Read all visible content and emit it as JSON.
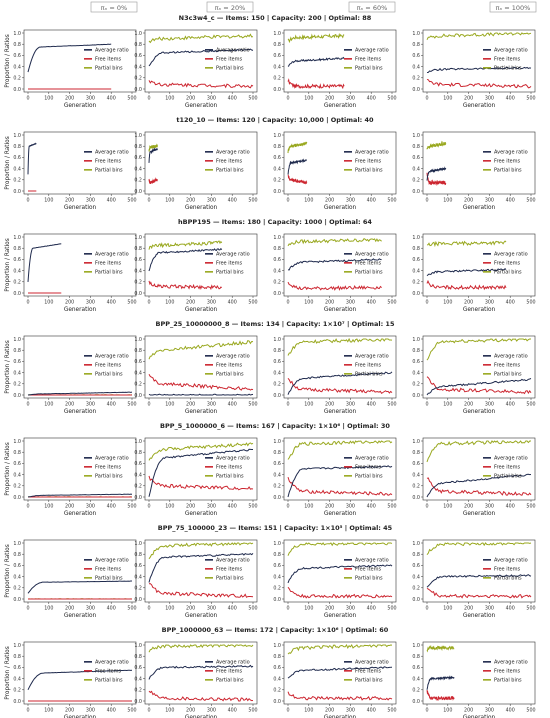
{
  "columns": [
    {
      "label": "πₙ = 0%"
    },
    {
      "label": "πₙ = 20%"
    },
    {
      "label": "πₙ = 60%"
    },
    {
      "label": "πₙ = 100%"
    }
  ],
  "axes": {
    "xlabel": "Generation",
    "ylabel": "Proportion / Ratios",
    "x_ticks": [
      0,
      100,
      200,
      300,
      400,
      500
    ],
    "y_ticks": [
      0.0,
      0.2,
      0.4,
      0.6,
      0.8,
      1.0
    ]
  },
  "legend": [
    {
      "name": "Average ratio",
      "color": "#1f2a4d"
    },
    {
      "name": "Free items",
      "color": "#cc2630"
    },
    {
      "name": "Partial bins",
      "color": "#99a81f"
    }
  ],
  "chart_data": [
    {
      "title": "N3c3w4_c — Items: 150 | Capacity: 200 | Optimal: 88",
      "type": "line",
      "xlim": [
        0,
        500
      ],
      "ylim": [
        0,
        1
      ],
      "panels": [
        {
          "avg": [
            0.3,
            0.75,
            0.8
          ],
          "free": [
            0.0,
            0.0,
            0.0
          ],
          "partial": null,
          "len": 400
        },
        {
          "avg": [
            0.4,
            0.65,
            0.7
          ],
          "free": [
            0.15,
            0.08,
            0.05
          ],
          "partial": [
            0.85,
            0.9,
            0.95
          ],
          "len": 500
        },
        {
          "avg": [
            0.4,
            0.5,
            0.55
          ],
          "free": [
            0.15,
            0.05,
            0.05
          ],
          "partial": [
            0.85,
            0.92,
            0.95
          ],
          "len": 270
        },
        {
          "avg": [
            0.3,
            0.35,
            0.38
          ],
          "free": [
            0.15,
            0.08,
            0.05
          ],
          "partial": [
            0.9,
            0.95,
            1.0
          ],
          "len": 500
        }
      ]
    },
    {
      "title": "t120_10 — Items: 120 | Capacity: 10,000 | Optimal: 40",
      "type": "line",
      "xlim": [
        0,
        500
      ],
      "ylim": [
        0,
        1
      ],
      "panels": [
        {
          "avg": [
            0.3,
            0.8,
            0.85
          ],
          "free": [
            0.0,
            0.0,
            0.0
          ],
          "partial": null,
          "len": 40
        },
        {
          "avg": [
            0.5,
            0.7,
            0.75
          ],
          "free": [
            0.2,
            0.15,
            0.2
          ],
          "partial": [
            0.7,
            0.78,
            0.8
          ],
          "len": 40
        },
        {
          "avg": [
            0.3,
            0.5,
            0.55
          ],
          "free": [
            0.3,
            0.2,
            0.15
          ],
          "partial": [
            0.7,
            0.8,
            0.85
          ],
          "len": 90
        },
        {
          "avg": [
            0.2,
            0.35,
            0.4
          ],
          "free": [
            0.3,
            0.15,
            0.15
          ],
          "partial": [
            0.75,
            0.8,
            0.85
          ],
          "len": 90
        }
      ]
    },
    {
      "title": "hBPP195 — Items: 180 | Capacity: 1000 | Optimal: 64",
      "type": "line",
      "xlim": [
        0,
        500
      ],
      "ylim": [
        0,
        1
      ],
      "panels": [
        {
          "avg": [
            0.2,
            0.8,
            0.88
          ],
          "free": [
            0.0,
            0.0,
            0.0
          ],
          "partial": null,
          "len": 160
        },
        {
          "avg": [
            0.4,
            0.72,
            0.78
          ],
          "free": [
            0.2,
            0.12,
            0.1
          ],
          "partial": [
            0.8,
            0.85,
            0.9
          ],
          "len": 350
        },
        {
          "avg": [
            0.4,
            0.55,
            0.6
          ],
          "free": [
            0.2,
            0.08,
            0.1
          ],
          "partial": [
            0.85,
            0.92,
            0.95
          ],
          "len": 450
        },
        {
          "avg": [
            0.3,
            0.38,
            0.42
          ],
          "free": [
            0.2,
            0.1,
            0.1
          ],
          "partial": [
            0.85,
            0.88,
            0.9
          ],
          "len": 380
        }
      ]
    },
    {
      "title": "BPP_25_10000000_8 — Items: 134 | Capacity: 1×10⁷ | Optimal: 15",
      "type": "line",
      "xlim": [
        0,
        500
      ],
      "ylim": [
        0,
        1
      ],
      "panels": [
        {
          "avg": [
            0.0,
            0.02,
            0.05
          ],
          "free": [
            0.0,
            0.0,
            0.0
          ],
          "partial": [
            0.0,
            0.0,
            0.0
          ],
          "len": 500
        },
        {
          "avg": [
            0.0,
            0.0,
            0.0
          ],
          "free": [
            0.35,
            0.2,
            0.1
          ],
          "partial": [
            0.65,
            0.8,
            0.95
          ],
          "len": 500
        },
        {
          "avg": [
            0.0,
            0.3,
            0.4
          ],
          "free": [
            0.3,
            0.1,
            0.05
          ],
          "partial": [
            0.7,
            0.95,
            1.0
          ],
          "len": 500
        },
        {
          "avg": [
            0.0,
            0.15,
            0.28
          ],
          "free": [
            0.35,
            0.1,
            0.05
          ],
          "partial": [
            0.6,
            0.95,
            1.0
          ],
          "len": 500
        }
      ]
    },
    {
      "title": "BPP_5_1000000_6 — Items: 167 | Capacity: 1×10⁶ | Optimal: 30",
      "type": "line",
      "xlim": [
        0,
        500
      ],
      "ylim": [
        0,
        1
      ],
      "panels": [
        {
          "avg": [
            0.0,
            0.03,
            0.05
          ],
          "free": [
            0.0,
            0.0,
            0.0
          ],
          "partial": [
            0.0,
            0.0,
            0.0
          ],
          "len": 500
        },
        {
          "avg": [
            0.0,
            0.7,
            0.85
          ],
          "free": [
            0.35,
            0.2,
            0.15
          ],
          "partial": [
            0.65,
            0.85,
            0.95
          ],
          "len": 500
        },
        {
          "avg": [
            0.0,
            0.5,
            0.55
          ],
          "free": [
            0.35,
            0.1,
            0.05
          ],
          "partial": [
            0.65,
            0.95,
            1.0
          ],
          "len": 500
        },
        {
          "avg": [
            0.0,
            0.25,
            0.4
          ],
          "free": [
            0.35,
            0.1,
            0.05
          ],
          "partial": [
            0.65,
            0.95,
            1.0
          ],
          "len": 500
        }
      ]
    },
    {
      "title": "BPP_75_100000_23 — Items: 151 | Capacity: 1×10⁵ | Optimal: 45",
      "type": "line",
      "xlim": [
        0,
        500
      ],
      "ylim": [
        0,
        1
      ],
      "panels": [
        {
          "avg": [
            0.1,
            0.3,
            0.32
          ],
          "free": [
            0.0,
            0.0,
            0.0
          ],
          "partial": [
            0.0,
            0.0,
            0.0
          ],
          "len": 500
        },
        {
          "avg": [
            0.3,
            0.75,
            0.8
          ],
          "free": [
            0.3,
            0.1,
            0.05
          ],
          "partial": [
            0.7,
            0.95,
            1.0
          ],
          "len": 500
        },
        {
          "avg": [
            0.3,
            0.55,
            0.6
          ],
          "free": [
            0.2,
            0.05,
            0.05
          ],
          "partial": [
            0.8,
            0.98,
            1.0
          ],
          "len": 500
        },
        {
          "avg": [
            0.2,
            0.4,
            0.42
          ],
          "free": [
            0.2,
            0.05,
            0.05
          ],
          "partial": [
            0.8,
            0.98,
            1.0
          ],
          "len": 500
        }
      ]
    },
    {
      "title": "BPP_1000000_63 — Items: 172 | Capacity: 1×10⁶ | Optimal: 60",
      "type": "line",
      "xlim": [
        0,
        500
      ],
      "ylim": [
        0,
        1
      ],
      "panels": [
        {
          "avg": [
            0.2,
            0.5,
            0.55
          ],
          "free": [
            0.0,
            0.0,
            0.0
          ],
          "partial": null,
          "len": 500
        },
        {
          "avg": [
            0.4,
            0.6,
            0.62
          ],
          "free": [
            0.2,
            0.05,
            0.02
          ],
          "partial": [
            0.9,
            0.98,
            1.0
          ],
          "len": 500
        },
        {
          "avg": [
            0.4,
            0.55,
            0.6
          ],
          "free": [
            0.15,
            0.05,
            0.05
          ],
          "partial": [
            0.85,
            0.95,
            1.0
          ],
          "len": 500
        },
        {
          "avg": [
            0.2,
            0.4,
            0.42
          ],
          "free": [
            0.2,
            0.05,
            0.05
          ],
          "partial": [
            0.9,
            0.95,
            0.95
          ],
          "len": 130
        }
      ]
    }
  ]
}
